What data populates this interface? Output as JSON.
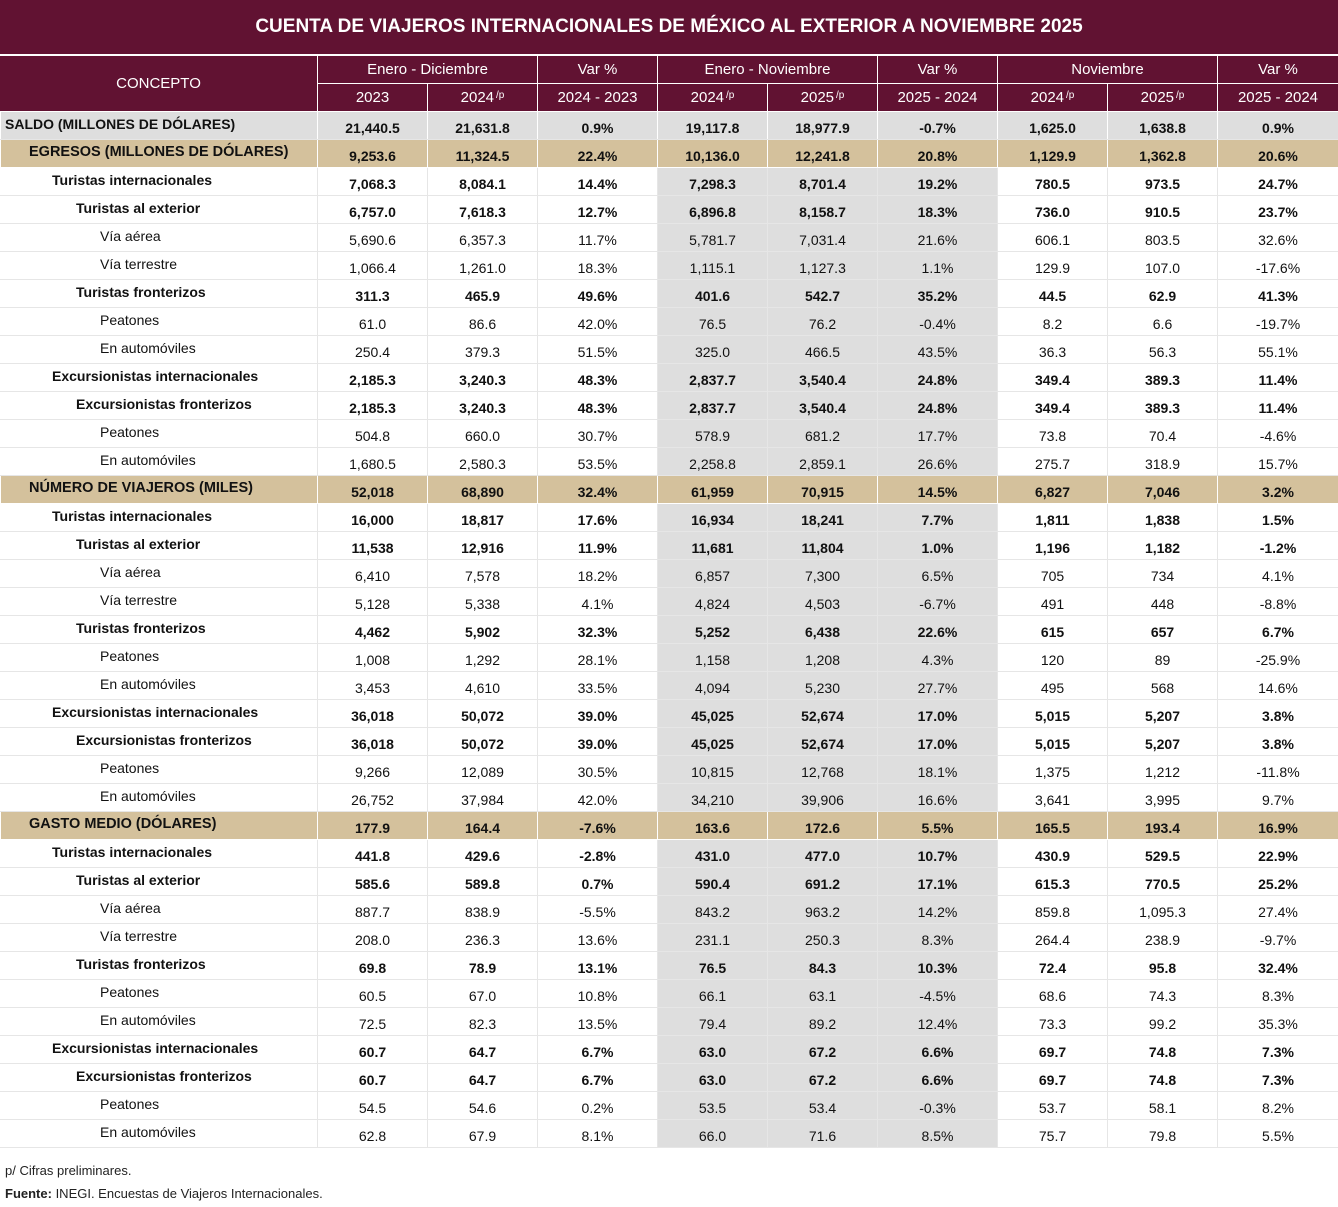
{
  "title": "CUENTA DE VIAJEROS INTERNACIONALES DE MÉXICO AL EXTERIOR A NOVIEMBRE 2025",
  "header": {
    "concept": "CONCEPTO",
    "groups": [
      "Enero - Diciembre",
      "Var %",
      "Enero - Noviembre",
      "Var %",
      "Noviembre",
      "Var %"
    ],
    "subcols": [
      {
        "t": "2023",
        "p": ""
      },
      {
        "t": "2024",
        "p": "/p"
      },
      {
        "t": "2024 - 2023",
        "p": ""
      },
      {
        "t": "2024",
        "p": "/p"
      },
      {
        "t": "2025",
        "p": "/p"
      },
      {
        "t": "2025 - 2024",
        "p": ""
      },
      {
        "t": "2024",
        "p": "/p"
      },
      {
        "t": "2025",
        "p": "/p"
      },
      {
        "t": "2025 - 2024",
        "p": ""
      }
    ]
  },
  "rows": [
    {
      "label": "SALDO (MILLONES DE DÓLARES)",
      "type": "saldo",
      "level": 0,
      "bold": true,
      "values": [
        "21,440.5",
        "21,631.8",
        "0.9%",
        "19,117.8",
        "18,977.9",
        "-0.7%",
        "1,625.0",
        "1,638.8",
        "0.9%"
      ]
    },
    {
      "label": "EGRESOS (MILLONES DE DÓLARES)",
      "type": "section",
      "level": 1,
      "bold": true,
      "values": [
        "9,253.6",
        "11,324.5",
        "22.4%",
        "10,136.0",
        "12,241.8",
        "20.8%",
        "1,129.9",
        "1,362.8",
        "20.6%"
      ]
    },
    {
      "label": "Turistas internacionales",
      "level": 2,
      "bold": true,
      "values": [
        "7,068.3",
        "8,084.1",
        "14.4%",
        "7,298.3",
        "8,701.4",
        "19.2%",
        "780.5",
        "973.5",
        "24.7%"
      ]
    },
    {
      "label": "Turistas al exterior",
      "level": 3,
      "bold": true,
      "values": [
        "6,757.0",
        "7,618.3",
        "12.7%",
        "6,896.8",
        "8,158.7",
        "18.3%",
        "736.0",
        "910.5",
        "23.7%"
      ]
    },
    {
      "label": "Vía aérea",
      "level": 4,
      "bold": false,
      "values": [
        "5,690.6",
        "6,357.3",
        "11.7%",
        "5,781.7",
        "7,031.4",
        "21.6%",
        "606.1",
        "803.5",
        "32.6%"
      ]
    },
    {
      "label": "Vía terrestre",
      "level": 4,
      "bold": false,
      "values": [
        "1,066.4",
        "1,261.0",
        "18.3%",
        "1,115.1",
        "1,127.3",
        "1.1%",
        "129.9",
        "107.0",
        "-17.6%"
      ]
    },
    {
      "label": "Turistas fronterizos",
      "level": 3,
      "bold": true,
      "values": [
        "311.3",
        "465.9",
        "49.6%",
        "401.6",
        "542.7",
        "35.2%",
        "44.5",
        "62.9",
        "41.3%"
      ]
    },
    {
      "label": "Peatones",
      "level": 4,
      "bold": false,
      "values": [
        "61.0",
        "86.6",
        "42.0%",
        "76.5",
        "76.2",
        "-0.4%",
        "8.2",
        "6.6",
        "-19.7%"
      ]
    },
    {
      "label": "En automóviles",
      "level": 4,
      "bold": false,
      "values": [
        "250.4",
        "379.3",
        "51.5%",
        "325.0",
        "466.5",
        "43.5%",
        "36.3",
        "56.3",
        "55.1%"
      ]
    },
    {
      "label": "Excursionistas internacionales",
      "level": 2,
      "bold": true,
      "values": [
        "2,185.3",
        "3,240.3",
        "48.3%",
        "2,837.7",
        "3,540.4",
        "24.8%",
        "349.4",
        "389.3",
        "11.4%"
      ]
    },
    {
      "label": "Excursionistas fronterizos",
      "level": 3,
      "bold": true,
      "values": [
        "2,185.3",
        "3,240.3",
        "48.3%",
        "2,837.7",
        "3,540.4",
        "24.8%",
        "349.4",
        "389.3",
        "11.4%"
      ]
    },
    {
      "label": "Peatones",
      "level": 4,
      "bold": false,
      "values": [
        "504.8",
        "660.0",
        "30.7%",
        "578.9",
        "681.2",
        "17.7%",
        "73.8",
        "70.4",
        "-4.6%"
      ]
    },
    {
      "label": "En automóviles",
      "level": 4,
      "bold": false,
      "values": [
        "1,680.5",
        "2,580.3",
        "53.5%",
        "2,258.8",
        "2,859.1",
        "26.6%",
        "275.7",
        "318.9",
        "15.7%"
      ]
    },
    {
      "label": "NÚMERO DE VIAJEROS (MILES)",
      "type": "section",
      "level": 1,
      "bold": true,
      "values": [
        "52,018",
        "68,890",
        "32.4%",
        "61,959",
        "70,915",
        "14.5%",
        "6,827",
        "7,046",
        "3.2%"
      ]
    },
    {
      "label": "Turistas internacionales",
      "level": 2,
      "bold": true,
      "values": [
        "16,000",
        "18,817",
        "17.6%",
        "16,934",
        "18,241",
        "7.7%",
        "1,811",
        "1,838",
        "1.5%"
      ]
    },
    {
      "label": "Turistas al exterior",
      "level": 3,
      "bold": true,
      "values": [
        "11,538",
        "12,916",
        "11.9%",
        "11,681",
        "11,804",
        "1.0%",
        "1,196",
        "1,182",
        "-1.2%"
      ]
    },
    {
      "label": "Vía aérea",
      "level": 4,
      "bold": false,
      "values": [
        "6,410",
        "7,578",
        "18.2%",
        "6,857",
        "7,300",
        "6.5%",
        "705",
        "734",
        "4.1%"
      ]
    },
    {
      "label": "Vía terrestre",
      "level": 4,
      "bold": false,
      "values": [
        "5,128",
        "5,338",
        "4.1%",
        "4,824",
        "4,503",
        "-6.7%",
        "491",
        "448",
        "-8.8%"
      ]
    },
    {
      "label": "Turistas fronterizos",
      "level": 3,
      "bold": true,
      "values": [
        "4,462",
        "5,902",
        "32.3%",
        "5,252",
        "6,438",
        "22.6%",
        "615",
        "657",
        "6.7%"
      ]
    },
    {
      "label": "Peatones",
      "level": 4,
      "bold": false,
      "values": [
        "1,008",
        "1,292",
        "28.1%",
        "1,158",
        "1,208",
        "4.3%",
        "120",
        "89",
        "-25.9%"
      ]
    },
    {
      "label": "En automóviles",
      "level": 4,
      "bold": false,
      "values": [
        "3,453",
        "4,610",
        "33.5%",
        "4,094",
        "5,230",
        "27.7%",
        "495",
        "568",
        "14.6%"
      ]
    },
    {
      "label": "Excursionistas internacionales",
      "level": 2,
      "bold": true,
      "values": [
        "36,018",
        "50,072",
        "39.0%",
        "45,025",
        "52,674",
        "17.0%",
        "5,015",
        "5,207",
        "3.8%"
      ]
    },
    {
      "label": "Excursionistas fronterizos",
      "level": 3,
      "bold": true,
      "values": [
        "36,018",
        "50,072",
        "39.0%",
        "45,025",
        "52,674",
        "17.0%",
        "5,015",
        "5,207",
        "3.8%"
      ]
    },
    {
      "label": "Peatones",
      "level": 4,
      "bold": false,
      "values": [
        "9,266",
        "12,089",
        "30.5%",
        "10,815",
        "12,768",
        "18.1%",
        "1,375",
        "1,212",
        "-11.8%"
      ]
    },
    {
      "label": "En automóviles",
      "level": 4,
      "bold": false,
      "values": [
        "26,752",
        "37,984",
        "42.0%",
        "34,210",
        "39,906",
        "16.6%",
        "3,641",
        "3,995",
        "9.7%"
      ]
    },
    {
      "label": "GASTO MEDIO (DÓLARES)",
      "type": "section",
      "level": 1,
      "bold": true,
      "values": [
        "177.9",
        "164.4",
        "-7.6%",
        "163.6",
        "172.6",
        "5.5%",
        "165.5",
        "193.4",
        "16.9%"
      ]
    },
    {
      "label": "Turistas internacionales",
      "level": 2,
      "bold": true,
      "values": [
        "441.8",
        "429.6",
        "-2.8%",
        "431.0",
        "477.0",
        "10.7%",
        "430.9",
        "529.5",
        "22.9%"
      ]
    },
    {
      "label": "Turistas al exterior",
      "level": 3,
      "bold": true,
      "values": [
        "585.6",
        "589.8",
        "0.7%",
        "590.4",
        "691.2",
        "17.1%",
        "615.3",
        "770.5",
        "25.2%"
      ]
    },
    {
      "label": "Vía aérea",
      "level": 4,
      "bold": false,
      "values": [
        "887.7",
        "838.9",
        "-5.5%",
        "843.2",
        "963.2",
        "14.2%",
        "859.8",
        "1,095.3",
        "27.4%"
      ]
    },
    {
      "label": "Vía terrestre",
      "level": 4,
      "bold": false,
      "values": [
        "208.0",
        "236.3",
        "13.6%",
        "231.1",
        "250.3",
        "8.3%",
        "264.4",
        "238.9",
        "-9.7%"
      ]
    },
    {
      "label": "Turistas fronterizos",
      "level": 3,
      "bold": true,
      "values": [
        "69.8",
        "78.9",
        "13.1%",
        "76.5",
        "84.3",
        "10.3%",
        "72.4",
        "95.8",
        "32.4%"
      ]
    },
    {
      "label": "Peatones",
      "level": 4,
      "bold": false,
      "values": [
        "60.5",
        "67.0",
        "10.8%",
        "66.1",
        "63.1",
        "-4.5%",
        "68.6",
        "74.3",
        "8.3%"
      ]
    },
    {
      "label": "En automóviles",
      "level": 4,
      "bold": false,
      "values": [
        "72.5",
        "82.3",
        "13.5%",
        "79.4",
        "89.2",
        "12.4%",
        "73.3",
        "99.2",
        "35.3%"
      ]
    },
    {
      "label": "Excursionistas internacionales",
      "level": 2,
      "bold": true,
      "values": [
        "60.7",
        "64.7",
        "6.7%",
        "63.0",
        "67.2",
        "6.6%",
        "69.7",
        "74.8",
        "7.3%"
      ]
    },
    {
      "label": "Excursionistas fronterizos",
      "level": 3,
      "bold": true,
      "values": [
        "60.7",
        "64.7",
        "6.7%",
        "63.0",
        "67.2",
        "6.6%",
        "69.7",
        "74.8",
        "7.3%"
      ]
    },
    {
      "label": "Peatones",
      "level": 4,
      "bold": false,
      "values": [
        "54.5",
        "54.6",
        "0.2%",
        "53.5",
        "53.4",
        "-0.3%",
        "53.7",
        "58.1",
        "8.2%"
      ]
    },
    {
      "label": "En automóviles",
      "level": 4,
      "bold": false,
      "values": [
        "62.8",
        "67.9",
        "8.1%",
        "66.0",
        "71.6",
        "8.5%",
        "75.7",
        "79.8",
        "5.5%"
      ]
    }
  ],
  "footer": {
    "note": "p/ Cifras preliminares.",
    "source_label": "Fuente:",
    "source_text": " INEGI. Encuestas de Viajeros Internacionales."
  },
  "colors": {
    "header": "#611232",
    "section": "#d4c19c",
    "shade": "#dedede"
  }
}
